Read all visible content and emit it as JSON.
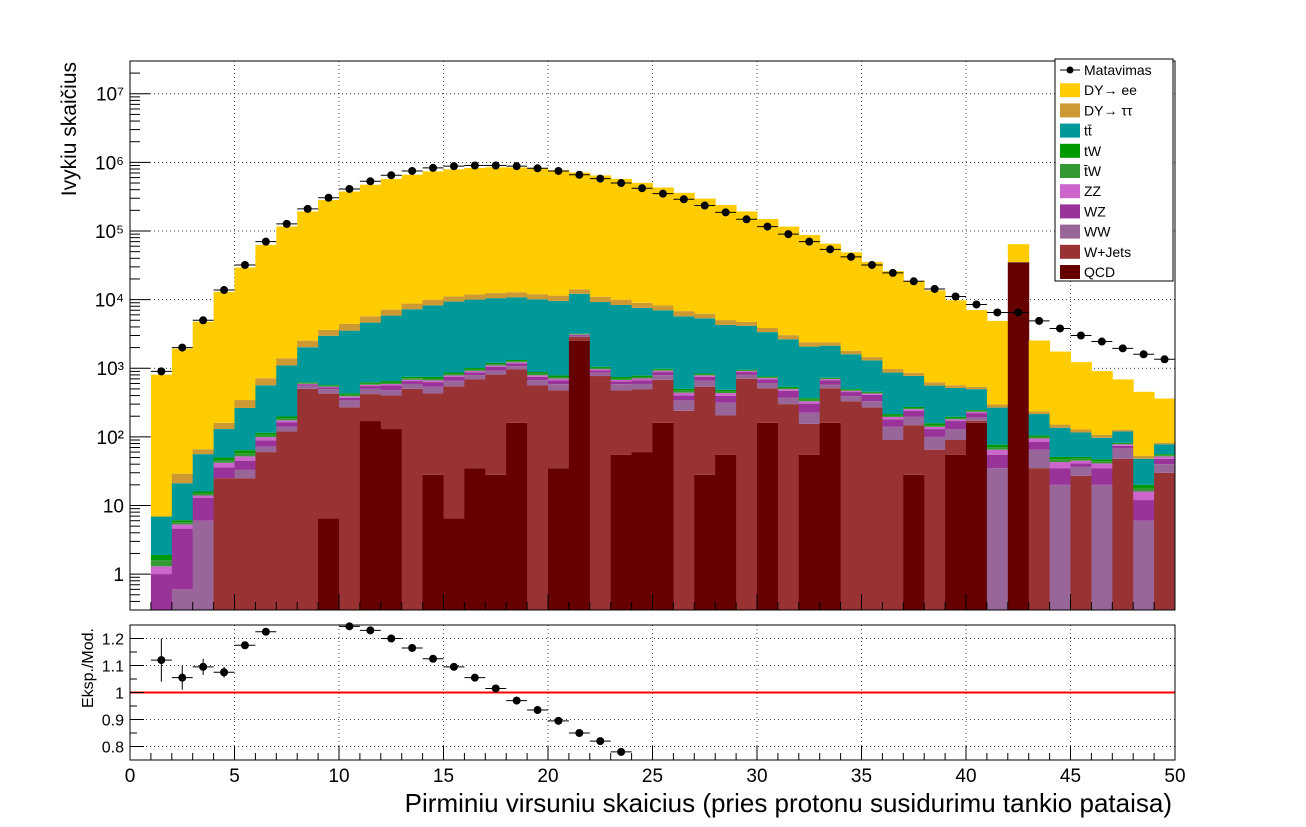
{
  "chart_data": [
    {
      "type": "bar",
      "stacked": true,
      "yscale": "log",
      "ylabel": "Ivykiu skaičius",
      "xlim": [
        0,
        50
      ],
      "ylim": [
        0.3,
        30000000
      ],
      "grid": true,
      "legend_position": "top-right",
      "bin_width": 1,
      "bins_x": [
        1,
        2,
        3,
        4,
        5,
        6,
        7,
        8,
        9,
        10,
        11,
        12,
        13,
        14,
        15,
        16,
        17,
        18,
        19,
        20,
        21,
        22,
        23,
        24,
        25,
        26,
        27,
        28,
        29,
        30,
        31,
        32,
        33,
        34,
        35,
        36,
        37,
        38,
        39,
        40,
        41,
        42,
        43,
        44,
        45,
        46,
        47,
        48,
        49
      ],
      "y_tick_labels": [
        "1",
        "10",
        "10²",
        "10³",
        "10⁴",
        "10⁵",
        "10⁶",
        "10⁷"
      ],
      "series": [
        {
          "name": "QCD",
          "color": "#660000",
          "values": [
            0,
            0,
            0,
            0,
            0,
            0,
            0,
            0,
            6.5,
            0,
            170,
            130,
            0,
            28,
            6.5,
            35,
            28,
            160,
            0,
            35,
            2500,
            0,
            55,
            60,
            160,
            0,
            28,
            55,
            0,
            160,
            0,
            55,
            160,
            0,
            0,
            0,
            28,
            0,
            55,
            160,
            0,
            35000,
            0,
            0,
            0,
            0,
            0,
            0,
            0
          ]
        },
        {
          "name": "W+Jets",
          "color": "#993333",
          "values": [
            0,
            0,
            0,
            25,
            25,
            60,
            120,
            500,
            420,
            270,
            250,
            270,
            500,
            400,
            540,
            650,
            780,
            800,
            560,
            440,
            350,
            770,
            420,
            430,
            520,
            240,
            510,
            150,
            700,
            350,
            300,
            100,
            350,
            330,
            270,
            90,
            120,
            65,
            35,
            12,
            0,
            0,
            35,
            0,
            27,
            0,
            48,
            0,
            30
          ]
        },
        {
          "name": "WW",
          "color": "#996699",
          "values": [
            0,
            0.6,
            6,
            0,
            8,
            12,
            20,
            55,
            70,
            70,
            80,
            80,
            90,
            110,
            110,
            110,
            120,
            110,
            110,
            110,
            100,
            90,
            110,
            100,
            110,
            100,
            120,
            110,
            100,
            100,
            70,
            70,
            70,
            60,
            60,
            50,
            50,
            35,
            40,
            20,
            35,
            0,
            30,
            20,
            10,
            20,
            20,
            6,
            10
          ]
        },
        {
          "name": "WZ",
          "color": "#993399",
          "values": [
            1,
            4,
            7,
            11,
            12,
            17,
            22,
            25,
            28,
            30,
            50,
            80,
            60,
            90,
            90,
            80,
            120,
            100,
            80,
            80,
            90,
            70,
            60,
            80,
            90,
            60,
            90,
            80,
            80,
            80,
            100,
            80,
            90,
            60,
            80,
            40,
            40,
            30,
            40,
            30,
            20,
            0,
            20,
            15,
            4,
            15,
            6,
            6,
            8
          ]
        },
        {
          "name": "ZZ",
          "color": "#cc66cc",
          "values": [
            0.3,
            0.7,
            1,
            6,
            7,
            10,
            12,
            15,
            15,
            20,
            25,
            30,
            30,
            40,
            40,
            40,
            50,
            50,
            40,
            40,
            50,
            40,
            30,
            40,
            40,
            40,
            40,
            40,
            30,
            30,
            25,
            25,
            25,
            20,
            20,
            15,
            15,
            10,
            10,
            10,
            10,
            0,
            10,
            8,
            4,
            6,
            4,
            4,
            4
          ]
        },
        {
          "name": "t̄W",
          "color": "#339933",
          "values": [
            0.3,
            0.4,
            1,
            4,
            6,
            8,
            12,
            15,
            15,
            20,
            25,
            30,
            35,
            40,
            40,
            45,
            50,
            50,
            45,
            40,
            45,
            40,
            35,
            35,
            30,
            30,
            25,
            25,
            22,
            20,
            20,
            18,
            16,
            14,
            12,
            10,
            10,
            9,
            8,
            7,
            6,
            0,
            5,
            4,
            3,
            3,
            2,
            2,
            2
          ]
        },
        {
          "name": "tW",
          "color": "#009900",
          "values": [
            0.3,
            0.4,
            1,
            4,
            6,
            8,
            12,
            15,
            15,
            20,
            25,
            30,
            35,
            40,
            40,
            45,
            50,
            50,
            45,
            40,
            45,
            40,
            35,
            35,
            30,
            30,
            25,
            25,
            22,
            20,
            20,
            18,
            16,
            14,
            12,
            10,
            10,
            9,
            8,
            7,
            6,
            0,
            5,
            4,
            3,
            3,
            2,
            2,
            2
          ]
        },
        {
          "name": "tt̄",
          "color": "#009999",
          "values": [
            5,
            15,
            40,
            80,
            200,
            450,
            900,
            1400,
            2400,
            3100,
            4000,
            5200,
            6500,
            7500,
            8500,
            9000,
            9300,
            9500,
            9200,
            8800,
            9000,
            8200,
            7600,
            6800,
            6000,
            5200,
            4500,
            3800,
            3200,
            2600,
            2100,
            1700,
            1400,
            1100,
            850,
            650,
            500,
            400,
            320,
            250,
            190,
            140,
            110,
            85,
            65,
            50,
            38,
            28,
            22
          ]
        },
        {
          "name": "DY→ ττ",
          "color": "#cc9933",
          "values": [
            0,
            8,
            10,
            30,
            80,
            150,
            300,
            500,
            650,
            900,
            1100,
            1300,
            1500,
            1700,
            1800,
            1900,
            1950,
            2000,
            1900,
            1850,
            1900,
            1750,
            1600,
            1400,
            1250,
            1100,
            900,
            750,
            600,
            500,
            400,
            320,
            250,
            200,
            150,
            110,
            85,
            65,
            50,
            40,
            30,
            25,
            20,
            15,
            12,
            10,
            7,
            5,
            4
          ]
        },
        {
          "name": "DY→ ee",
          "color": "#ffcc00",
          "values": [
            800,
            1900,
            4700,
            12800,
            29000,
            62000,
            115000,
            190000,
            278000,
            372000,
            467000,
            567000,
            652000,
            730000,
            780000,
            818000,
            835000,
            830000,
            800000,
            757000,
            697000,
            634000,
            565000,
            494000,
            422000,
            353000,
            290000,
            235000,
            188000,
            146000,
            113000,
            85000,
            63000,
            47000,
            34000,
            25000,
            18000,
            13000,
            9200,
            6500,
            4600,
            29000,
            2300,
            1600,
            1100,
            800,
            560,
            400,
            280
          ]
        }
      ],
      "measurement": {
        "name": "Matavimas",
        "color": "#000000",
        "values": [
          900,
          2000,
          5000,
          13800,
          32000,
          70000,
          127000,
          210000,
          305000,
          410000,
          530000,
          650000,
          750000,
          830000,
          880000,
          900000,
          900000,
          880000,
          820000,
          750000,
          660000,
          580000,
          500000,
          420000,
          350000,
          290000,
          235000,
          187000,
          148000,
          116000,
          90000,
          70000,
          54000,
          42000,
          32000,
          24500,
          18500,
          14300,
          11100,
          8500,
          6500,
          6500,
          4900,
          3800,
          3000,
          2450,
          1950,
          1600,
          1350
        ]
      },
      "legend_entries": [
        "Matavimas",
        "DY→ ee",
        "DY→ ττ",
        "tt̄",
        "tW",
        "t̄W",
        "ZZ",
        "WZ",
        "WW",
        "W+Jets",
        "QCD"
      ]
    },
    {
      "type": "scatter",
      "ylabel": "Eksp./Mod.",
      "xlabel": "Pirminiu virsuniu skaicius (pries protonu susidurimu tankio pataisa)",
      "xlim": [
        0,
        50
      ],
      "ylim": [
        0.75,
        1.25
      ],
      "grid": true,
      "x_tick_labels": [
        "0",
        "5",
        "10",
        "15",
        "20",
        "25",
        "30",
        "35",
        "40",
        "45",
        "50"
      ],
      "y_tick_labels": [
        "0.8",
        "0.9",
        "1",
        "1.1",
        "1.2"
      ],
      "reference_line": {
        "value": 1,
        "color": "#ff0000"
      },
      "x": [
        1.5,
        2.5,
        3.5,
        4.5,
        5.5,
        6.5,
        10.5,
        11.5,
        12.5,
        13.5,
        14.5,
        15.5,
        16.5,
        17.5,
        18.5,
        19.5,
        20.5,
        21.5,
        22.5,
        23.5
      ],
      "y": [
        1.12,
        1.055,
        1.095,
        1.075,
        1.175,
        1.225,
        1.245,
        1.23,
        1.2,
        1.165,
        1.125,
        1.095,
        1.055,
        1.015,
        0.97,
        0.935,
        0.895,
        0.85,
        0.82,
        0.78
      ],
      "y_err": [
        0.08,
        0.045,
        0.03,
        0.02,
        0.01,
        0.005,
        0.005,
        0.005,
        0.005,
        0.005,
        0.005,
        0.005,
        0.005,
        0.005,
        0.005,
        0.005,
        0.005,
        0.005,
        0.005,
        0.005
      ]
    }
  ]
}
